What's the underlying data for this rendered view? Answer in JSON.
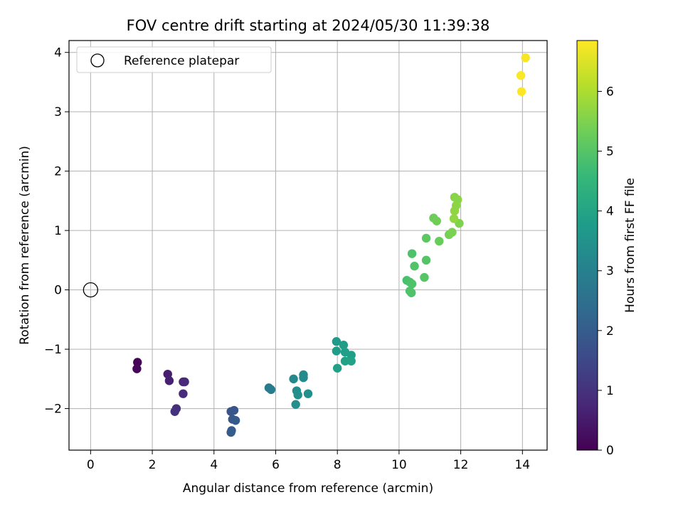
{
  "chart_data": {
    "type": "scatter",
    "title": "FOV centre drift starting at 2024/05/30 11:39:38",
    "xlabel": "Angular distance from reference (arcmin)",
    "ylabel": "Rotation from reference (arcmin)",
    "xlim": [
      -0.7,
      14.8
    ],
    "ylim": [
      -2.7,
      4.2
    ],
    "xticks": [
      0,
      2,
      4,
      6,
      8,
      10,
      12,
      14
    ],
    "yticks": [
      -2,
      -1,
      0,
      1,
      2,
      3,
      4
    ],
    "grid": true,
    "legend": {
      "position": "top-left",
      "entries": [
        "Reference platepar"
      ]
    },
    "reference_point": {
      "x": 0,
      "y": 0,
      "label": "Reference platepar"
    },
    "colorbar": {
      "label": "Hours from first FF file",
      "colormap": "viridis",
      "range": [
        0,
        6.85
      ],
      "ticks": [
        0,
        1,
        2,
        3,
        4,
        5,
        6
      ]
    },
    "colormap_stops": [
      "#440154",
      "#482878",
      "#3e4989",
      "#31688e",
      "#26828e",
      "#1f9e89",
      "#35b779",
      "#6ece58",
      "#b5de2b",
      "#fde725"
    ],
    "points": [
      {
        "x": 1.52,
        "y": -1.22,
        "t": 0.05
      },
      {
        "x": 1.5,
        "y": -1.33,
        "t": 0.12
      },
      {
        "x": 2.5,
        "y": -1.42,
        "t": 0.55
      },
      {
        "x": 2.55,
        "y": -1.53,
        "t": 0.62
      },
      {
        "x": 3.0,
        "y": -1.55,
        "t": 0.75
      },
      {
        "x": 3.05,
        "y": -1.55,
        "t": 0.8
      },
      {
        "x": 3.0,
        "y": -1.75,
        "t": 0.85
      },
      {
        "x": 2.78,
        "y": -2.0,
        "t": 0.95
      },
      {
        "x": 2.73,
        "y": -2.05,
        "t": 1.0
      },
      {
        "x": 4.55,
        "y": -2.05,
        "t": 1.8
      },
      {
        "x": 4.65,
        "y": -2.03,
        "t": 1.85
      },
      {
        "x": 4.6,
        "y": -2.18,
        "t": 1.9
      },
      {
        "x": 4.7,
        "y": -2.2,
        "t": 1.95
      },
      {
        "x": 4.57,
        "y": -2.37,
        "t": 1.97
      },
      {
        "x": 4.55,
        "y": -2.4,
        "t": 2.0
      },
      {
        "x": 5.78,
        "y": -1.65,
        "t": 2.8
      },
      {
        "x": 5.85,
        "y": -1.68,
        "t": 2.85
      },
      {
        "x": 6.58,
        "y": -1.5,
        "t": 3.2
      },
      {
        "x": 6.9,
        "y": -1.43,
        "t": 3.25
      },
      {
        "x": 6.9,
        "y": -1.48,
        "t": 3.3
      },
      {
        "x": 6.68,
        "y": -1.7,
        "t": 3.35
      },
      {
        "x": 6.72,
        "y": -1.77,
        "t": 3.4
      },
      {
        "x": 7.05,
        "y": -1.75,
        "t": 3.45
      },
      {
        "x": 6.65,
        "y": -1.93,
        "t": 3.38
      },
      {
        "x": 7.97,
        "y": -0.87,
        "t": 3.7
      },
      {
        "x": 7.97,
        "y": -1.03,
        "t": 3.75
      },
      {
        "x": 8.2,
        "y": -0.93,
        "t": 3.78
      },
      {
        "x": 8.25,
        "y": -1.05,
        "t": 3.8
      },
      {
        "x": 8.45,
        "y": -1.1,
        "t": 3.85
      },
      {
        "x": 8.25,
        "y": -1.2,
        "t": 3.9
      },
      {
        "x": 8.45,
        "y": -1.2,
        "t": 3.92
      },
      {
        "x": 8.0,
        "y": -1.32,
        "t": 3.88
      },
      {
        "x": 10.42,
        "y": 0.61,
        "t": 4.9
      },
      {
        "x": 10.5,
        "y": 0.4,
        "t": 4.95
      },
      {
        "x": 10.88,
        "y": 0.5,
        "t": 5.0
      },
      {
        "x": 10.82,
        "y": 0.21,
        "t": 5.02
      },
      {
        "x": 10.25,
        "y": 0.16,
        "t": 4.85
      },
      {
        "x": 10.35,
        "y": 0.13,
        "t": 4.88
      },
      {
        "x": 10.42,
        "y": 0.1,
        "t": 4.9
      },
      {
        "x": 10.35,
        "y": -0.02,
        "t": 4.92
      },
      {
        "x": 10.4,
        "y": -0.05,
        "t": 4.93
      },
      {
        "x": 10.88,
        "y": 0.87,
        "t": 5.1
      },
      {
        "x": 11.12,
        "y": 1.21,
        "t": 5.3
      },
      {
        "x": 11.22,
        "y": 1.16,
        "t": 5.35
      },
      {
        "x": 11.3,
        "y": 0.82,
        "t": 5.25
      },
      {
        "x": 11.62,
        "y": 0.93,
        "t": 5.4
      },
      {
        "x": 11.72,
        "y": 0.97,
        "t": 5.45
      },
      {
        "x": 11.95,
        "y": 1.12,
        "t": 5.5
      },
      {
        "x": 11.8,
        "y": 1.56,
        "t": 5.6
      },
      {
        "x": 11.9,
        "y": 1.52,
        "t": 5.62
      },
      {
        "x": 11.85,
        "y": 1.42,
        "t": 5.65
      },
      {
        "x": 11.8,
        "y": 1.33,
        "t": 5.68
      },
      {
        "x": 11.78,
        "y": 1.2,
        "t": 5.7
      },
      {
        "x": 14.1,
        "y": 3.91,
        "t": 6.8
      },
      {
        "x": 13.95,
        "y": 3.61,
        "t": 6.82
      },
      {
        "x": 13.97,
        "y": 3.34,
        "t": 6.85
      }
    ]
  }
}
